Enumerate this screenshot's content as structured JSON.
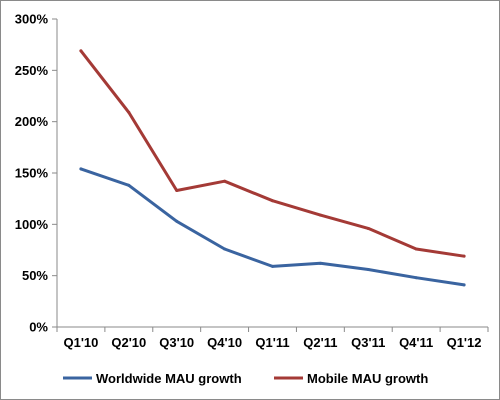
{
  "chart_data": {
    "type": "line",
    "categories": [
      "Q1'10",
      "Q2'10",
      "Q3'10",
      "Q4'10",
      "Q1'11",
      "Q2'11",
      "Q3'11",
      "Q4'11",
      "Q1'12"
    ],
    "ylim": [
      0,
      300
    ],
    "yticks": [
      0,
      50,
      100,
      150,
      200,
      250,
      300
    ],
    "ytick_labels": [
      "0%",
      "50%",
      "100%",
      "150%",
      "200%",
      "250%",
      "300%"
    ],
    "grid": false,
    "legend_position": "bottom",
    "series": [
      {
        "name": "Worldwide MAU growth",
        "color": "#3a64a0",
        "values": [
          154,
          138,
          103,
          76,
          59,
          62,
          56,
          48,
          41
        ]
      },
      {
        "name": "Mobile MAU growth",
        "color": "#a43a36",
        "values": [
          269,
          209,
          133,
          142,
          123,
          109,
          96,
          76,
          69
        ]
      }
    ]
  }
}
